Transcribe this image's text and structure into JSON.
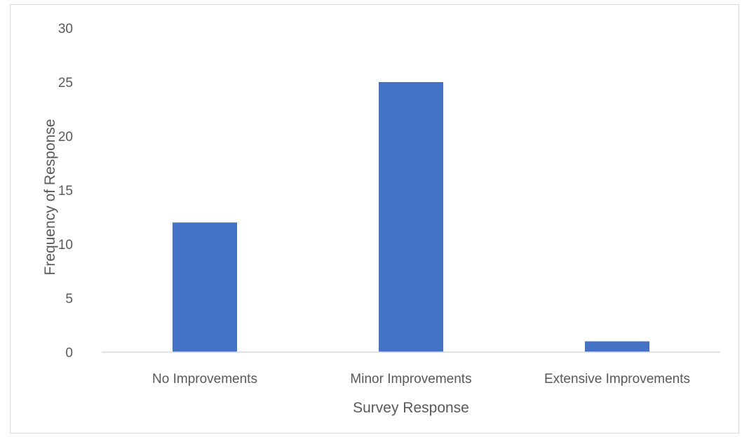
{
  "chart_data": {
    "type": "bar",
    "title": "",
    "xlabel": "Survey Response",
    "ylabel": "Frequency of Response",
    "categories": [
      "No Improvements",
      "Minor Improvements",
      "Extensive Improvements"
    ],
    "values": [
      12,
      25,
      1
    ],
    "ylim": [
      0,
      30
    ],
    "yticks": [
      0,
      5,
      10,
      15,
      20,
      25,
      30
    ],
    "grid": false,
    "legend": "none",
    "bar_color": "#4472C4",
    "axis_color": "#D9D9D9",
    "text_color": "#595959"
  }
}
